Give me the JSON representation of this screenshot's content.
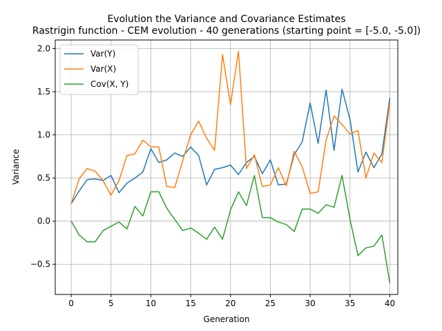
{
  "chart_data": {
    "type": "line",
    "title": "Evolution the Variance and Covariance Estimates",
    "subtitle": "Rastrigin function - CEM evolution - 40 generations (starting point = [-5.0, -5.0])",
    "xlabel": "Generation",
    "ylabel": "Variance",
    "xlim": [
      -2,
      41
    ],
    "ylim": [
      -0.85,
      2.1
    ],
    "xticks": [
      0,
      5,
      10,
      15,
      20,
      25,
      30,
      35,
      40
    ],
    "yticks": [
      -0.5,
      0.0,
      0.5,
      1.0,
      1.5,
      2.0
    ],
    "xtick_labels": [
      "0",
      "5",
      "10",
      "15",
      "20",
      "25",
      "30",
      "35",
      "40"
    ],
    "ytick_labels": [
      "−0.5",
      "0.0",
      "0.5",
      "1.0",
      "1.5",
      "2.0"
    ],
    "grid": true,
    "legend_position": "top-left",
    "x": [
      0,
      1,
      2,
      3,
      4,
      5,
      6,
      7,
      8,
      9,
      10,
      11,
      12,
      13,
      14,
      15,
      16,
      17,
      18,
      19,
      20,
      21,
      22,
      23,
      24,
      25,
      26,
      27,
      28,
      29,
      30,
      31,
      32,
      33,
      34,
      35,
      36,
      37,
      38,
      39,
      40
    ],
    "series": [
      {
        "name": "Var(Y)",
        "color": "#1f77b4",
        "values": [
          0.2,
          0.35,
          0.48,
          0.49,
          0.47,
          0.53,
          0.33,
          0.44,
          0.5,
          0.57,
          0.84,
          0.68,
          0.71,
          0.79,
          0.75,
          0.86,
          0.76,
          0.42,
          0.6,
          0.62,
          0.65,
          0.54,
          0.68,
          0.75,
          0.55,
          0.71,
          0.42,
          0.43,
          0.77,
          0.92,
          1.37,
          0.9,
          1.52,
          0.82,
          1.53,
          1.18,
          0.57,
          0.8,
          0.62,
          0.78,
          1.43
        ]
      },
      {
        "name": "Var(X)",
        "color": "#ff7f0e",
        "values": [
          0.2,
          0.49,
          0.61,
          0.58,
          0.47,
          0.3,
          0.47,
          0.76,
          0.78,
          0.94,
          0.86,
          0.86,
          0.4,
          0.39,
          0.7,
          1.0,
          1.16,
          0.96,
          0.82,
          1.93,
          1.35,
          1.97,
          0.61,
          0.77,
          0.4,
          0.42,
          0.62,
          0.41,
          0.81,
          0.63,
          0.32,
          0.34,
          0.94,
          1.22,
          1.12,
          1.01,
          1.05,
          0.5,
          0.79,
          0.68,
          1.37
        ]
      },
      {
        "name": "Cov(X, Y)",
        "color": "#2ca02c",
        "values": [
          0.0,
          -0.16,
          -0.24,
          -0.24,
          -0.11,
          -0.06,
          -0.01,
          -0.09,
          0.17,
          0.06,
          0.34,
          0.34,
          0.15,
          0.02,
          -0.11,
          -0.08,
          -0.14,
          -0.21,
          -0.07,
          -0.21,
          0.13,
          0.34,
          0.18,
          0.53,
          0.04,
          0.04,
          -0.01,
          -0.04,
          -0.12,
          0.14,
          0.14,
          0.09,
          0.19,
          0.16,
          0.53,
          0.02,
          -0.4,
          -0.31,
          -0.29,
          -0.16,
          -0.72
        ]
      }
    ]
  }
}
